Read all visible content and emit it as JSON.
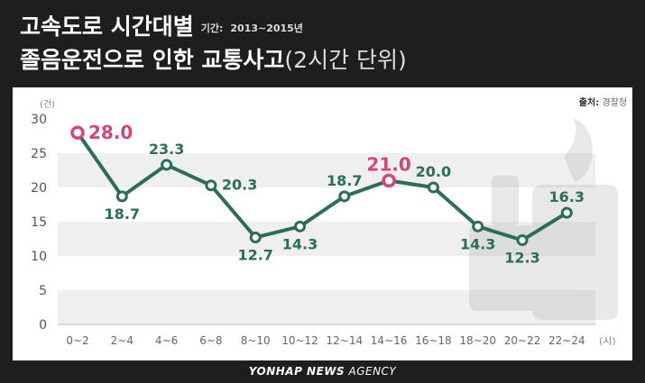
{
  "header": {
    "title_line1": "고속도로 시간대별",
    "period_label": "기간:",
    "period_value": "2013~2015년",
    "title_line2": "졸음운전으로 인한 교통사고",
    "title_unit": "(2시간 단위)"
  },
  "source": {
    "label": "출처:",
    "value": "경찰청"
  },
  "footer": {
    "brand_bold": "YONHAP NEWS",
    "brand_rest": " AGENCY"
  },
  "chart_data": {
    "type": "line",
    "title": "고속도로 시간대별 졸음운전으로 인한 교통사고",
    "ylabel": "(건)",
    "xlabel": "(시)",
    "ylim": [
      0,
      30
    ],
    "yticks": [
      0,
      5,
      10,
      15,
      20,
      25,
      30
    ],
    "categories": [
      "0~2",
      "2~4",
      "4~6",
      "6~8",
      "8~10",
      "10~12",
      "12~14",
      "14~16",
      "16~18",
      "18~20",
      "20~22",
      "22~24"
    ],
    "series": [
      {
        "values": [
          28.0,
          18.7,
          23.3,
          20.3,
          12.7,
          14.3,
          18.7,
          21.0,
          20.0,
          14.3,
          12.3,
          16.3
        ]
      }
    ],
    "highlight_indices": [
      0,
      7
    ],
    "colors": {
      "line": "#2a6e56",
      "highlight": "#d6457a",
      "band": "#efefef"
    },
    "grid": false
  }
}
